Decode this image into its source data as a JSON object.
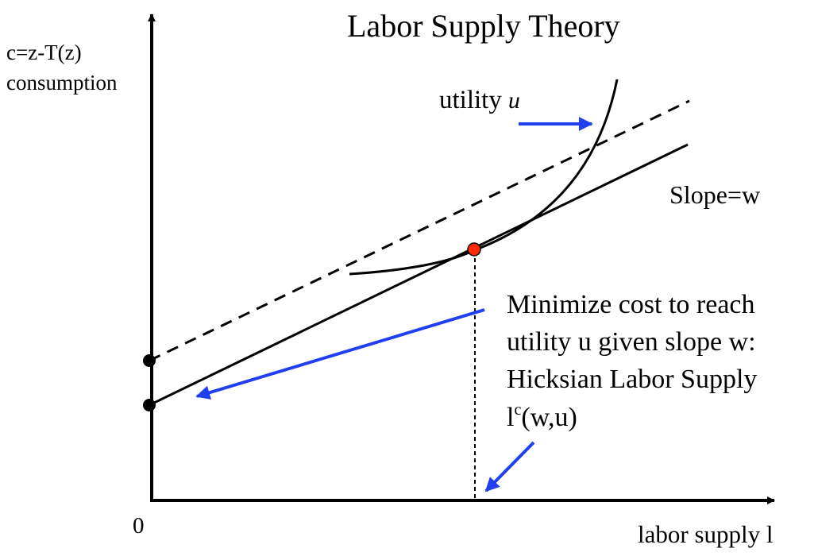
{
  "title": "Labor Supply Theory",
  "y_axis": {
    "line1": "c=z-T(z)",
    "line2": "consumption"
  },
  "x_axis": {
    "label": "labor supply l",
    "origin": "0"
  },
  "utility_label": {
    "text": "utility",
    "symbol": "u"
  },
  "slope_label": "Slope=w",
  "annotation": {
    "line1": "Minimize cost to reach",
    "line2": "utility u given slope w:",
    "line3": "Hicksian Labor Supply",
    "line4_prefix": "l",
    "line4_sup": "c",
    "line4_suffix": "(w,u)"
  },
  "colors": {
    "axis": "#000000",
    "curve": "#000000",
    "arrow": "#1f3ff0",
    "tangent_point": "#ff2a00",
    "intercept_point": "#000000"
  }
}
